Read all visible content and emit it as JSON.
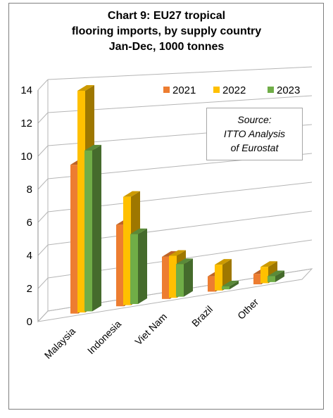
{
  "chart_data": {
    "type": "bar",
    "title_lines": [
      "Chart 9: EU27 tropical",
      "flooring imports, by supply country",
      "Jan-Dec, 1000 tonnes"
    ],
    "categories": [
      "Malaysia",
      "Indonesia",
      "Viet Nam",
      "Brazil",
      "Other"
    ],
    "series": [
      {
        "name": "2021",
        "color": "#ed7d31",
        "values": [
          9.1,
          5.1,
          2.7,
          1.0,
          0.7
        ]
      },
      {
        "name": "2022",
        "color": "#ffc000",
        "values": [
          13.6,
          6.8,
          2.7,
          1.7,
          1.1
        ]
      },
      {
        "name": "2023",
        "color": "#70ad47",
        "values": [
          9.9,
          4.4,
          2.1,
          0.2,
          0.4
        ]
      }
    ],
    "ylim": [
      0,
      14
    ],
    "yticks": [
      "0",
      "2",
      "4",
      "6",
      "8",
      "10",
      "12",
      "14"
    ],
    "grid": true,
    "legend": "top-right",
    "annotation_lines": [
      "Source:",
      "ITTO Analysis",
      "of Eurostat"
    ]
  }
}
